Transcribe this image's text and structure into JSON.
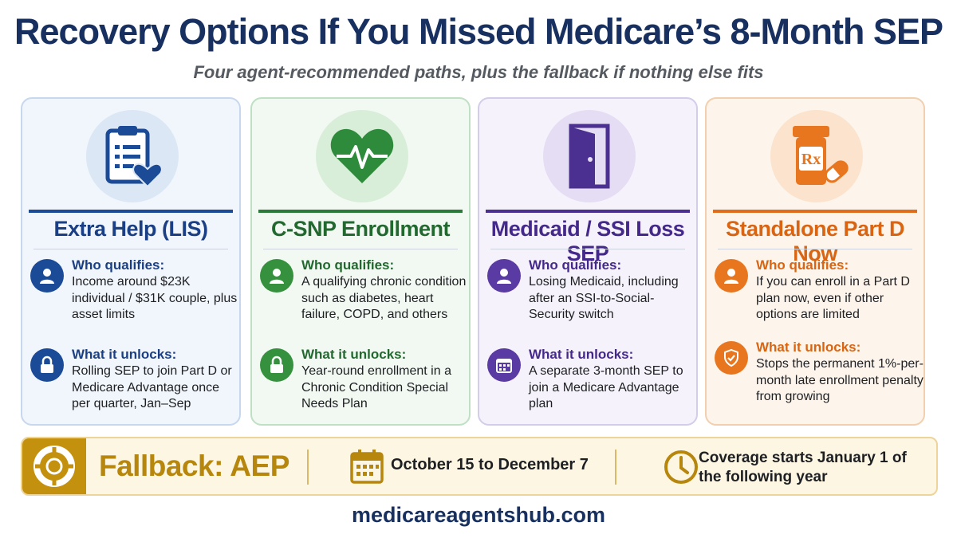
{
  "header": {
    "title": "Recovery Options If You Missed Medicare’s 8-Month SEP",
    "subtitle": "Four agent-recommended paths, plus the fallback if nothing else fits"
  },
  "cards": [
    {
      "title": "Extra Help (LIS)",
      "icon": "clipboard-heart-icon",
      "qualifies_label": "Who qualifies:",
      "qualifies_text": "Income around $23K individual / $31K couple, plus asset limits",
      "unlocks_label": "What it unlocks:",
      "unlocks_text": "Rolling SEP to join Part D or Medicare Advantage once per quarter, Jan–Sep",
      "color": "#1b4a97"
    },
    {
      "title": "C-SNP Enrollment",
      "icon": "heart-pulse-icon",
      "qualifies_label": "Who qualifies:",
      "qualifies_text": "A qualifying chronic condition such as diabetes, heart failure, COPD, and others",
      "unlocks_label": "What it unlocks:",
      "unlocks_text": "Year-round enrollment in a Chronic Condition Special Needs Plan",
      "color": "#2b7a3a"
    },
    {
      "title": "Medicaid / SSI Loss SEP",
      "icon": "open-door-icon",
      "qualifies_label": "Who qualifies:",
      "qualifies_text": "Losing Medicaid, including after an SSI-to-Social-Security switch",
      "unlocks_label": "What it unlocks:",
      "unlocks_text": "A separate 3-month SEP to join a Medicare Advantage plan",
      "color": "#4b2f91"
    },
    {
      "title": "Standalone Part D Now",
      "icon": "rx-bottle-icon",
      "qualifies_label": "Who qualifies:",
      "qualifies_text": "If you can enroll in a Part D plan now, even if other options are limited",
      "unlocks_label": "What it unlocks:",
      "unlocks_text": "Stops the permanent 1%-per-month late enrollment penalty from growing",
      "color": "#e06d1b"
    }
  ],
  "fallback": {
    "title": "Fallback: AEP",
    "dates": "October 15 to December 7",
    "coverage": "Coverage starts January 1 of the following year",
    "color": "#c4910f"
  },
  "footer": {
    "site": "medicareagentshub.com"
  }
}
